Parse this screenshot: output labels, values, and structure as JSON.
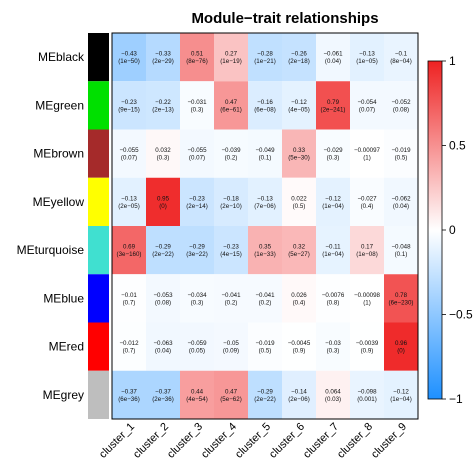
{
  "chart_data": {
    "type": "heatmap",
    "title": "Module−trait relationships",
    "rows": [
      "MEblack",
      "MEgreen",
      "MEbrown",
      "MEyellow",
      "MEturquoise",
      "MEblue",
      "MEred",
      "MEgrey"
    ],
    "row_colors": [
      "#000000",
      "#00e000",
      "#a52a2a",
      "#ffff00",
      "#40e0d0",
      "#0000ff",
      "#ff0000",
      "#bebebe"
    ],
    "columns": [
      "cluster_1",
      "cluster_2",
      "cluster_3",
      "cluster_4",
      "cluster_5",
      "cluster_6",
      "cluster_7",
      "cluster_8",
      "cluster_9"
    ],
    "values": [
      [
        -0.43,
        -0.33,
        0.51,
        0.27,
        -0.28,
        -0.26,
        -0.061,
        -0.13,
        -0.1
      ],
      [
        -0.23,
        -0.22,
        -0.031,
        0.47,
        -0.16,
        -0.12,
        0.79,
        -0.054,
        -0.052
      ],
      [
        -0.055,
        0.032,
        -0.055,
        -0.039,
        -0.049,
        0.33,
        -0.029,
        -0.00097,
        -0.019
      ],
      [
        -0.13,
        0.95,
        -0.23,
        -0.18,
        -0.13,
        0.022,
        -0.12,
        -0.027,
        -0.062
      ],
      [
        0.69,
        -0.29,
        -0.29,
        -0.23,
        0.35,
        0.32,
        -0.11,
        0.17,
        -0.048
      ],
      [
        -0.01,
        -0.053,
        -0.034,
        -0.041,
        -0.041,
        0.026,
        -0.0076,
        -0.00098,
        0.78
      ],
      [
        -0.012,
        -0.063,
        -0.059,
        -0.05,
        -0.019,
        -0.0045,
        -0.03,
        -0.0039,
        0.96
      ],
      [
        -0.37,
        -0.37,
        0.44,
        0.47,
        -0.29,
        -0.14,
        0.064,
        -0.098,
        -0.12
      ]
    ],
    "pvalues": [
      [
        "(1e−50)",
        "(2e−29)",
        "(8e−76)",
        "(1e−19)",
        "(1e−21)",
        "(2e−18)",
        "(0.04)",
        "(1e−05)",
        "(8e−04)"
      ],
      [
        "(9e−15)",
        "(2e−13)",
        "(0.3)",
        "(6e−61)",
        "(6e−08)",
        "(4e−05)",
        "(2e−241)",
        "(0.07)",
        "(0.08)"
      ],
      [
        "(0.07)",
        "(0.3)",
        "(0.07)",
        "(0.2)",
        "(0.1)",
        "(5e−30)",
        "(0.3)",
        "(1)",
        "(0.5)"
      ],
      [
        "(2e−05)",
        "(0)",
        "(2e−14)",
        "(2e−10)",
        "(7e−06)",
        "(0.5)",
        "(1e−04)",
        "(0.4)",
        "(0.04)"
      ],
      [
        "(3e−160)",
        "(2e−22)",
        "(3e−22)",
        "(4e−15)",
        "(1e−33)",
        "(5e−27)",
        "(1e−04)",
        "(1e−08)",
        "(0.1)"
      ],
      [
        "(0.7)",
        "(0.08)",
        "(0.3)",
        "(0.2)",
        "(0.2)",
        "(0.4)",
        "(0.8)",
        "(1)",
        "(6e−230)"
      ],
      [
        "(0.7)",
        "(0.04)",
        "(0.05)",
        "(0.09)",
        "(0.5)",
        "(0.9)",
        "(0.3)",
        "(0.9)",
        "(0)"
      ],
      [
        "(6e−36)",
        "(2e−36)",
        "(4e−54)",
        "(5e−62)",
        "(2e−22)",
        "(2e−06)",
        "(0.03)",
        "(0.001)",
        "(1e−04)"
      ]
    ],
    "value_labels": [
      [
        "−0.43",
        "−0.33",
        "0.51",
        "0.27",
        "−0.28",
        "−0.26",
        "−0.061",
        "−0.13",
        "−0.1"
      ],
      [
        "−0.23",
        "−0.22",
        "−0.031",
        "0.47",
        "−0.16",
        "−0.12",
        "0.79",
        "−0.054",
        "−0.052"
      ],
      [
        "−0.055",
        "0.032",
        "−0.055",
        "−0.039",
        "−0.049",
        "0.33",
        "−0.029",
        "−0.00097",
        "−0.019"
      ],
      [
        "−0.13",
        "0.95",
        "−0.23",
        "−0.18",
        "−0.13",
        "0.022",
        "−0.12",
        "−0.027",
        "−0.062"
      ],
      [
        "0.69",
        "−0.29",
        "−0.29",
        "−0.23",
        "0.35",
        "0.32",
        "−0.11",
        "0.17",
        "−0.048"
      ],
      [
        "−0.01",
        "−0.053",
        "−0.034",
        "−0.041",
        "−0.041",
        "0.026",
        "−0.0076",
        "−0.00098",
        "0.78"
      ],
      [
        "−0.012",
        "−0.063",
        "−0.059",
        "−0.05",
        "−0.019",
        "−0.0045",
        "−0.03",
        "−0.0039",
        "0.96"
      ],
      [
        "−0.37",
        "−0.37",
        "0.44",
        "0.47",
        "−0.29",
        "−0.14",
        "0.064",
        "−0.098",
        "−0.12"
      ]
    ],
    "color_scale": {
      "min": -1,
      "max": 1,
      "low_color": "#1e90ff",
      "mid_color": "#ffffff",
      "high_color": "#ee2222",
      "ticks": [
        1,
        0.5,
        0,
        -0.5,
        -1
      ],
      "tick_labels": [
        "1",
        "0.5",
        "0",
        "−0.5",
        "−1"
      ]
    },
    "legend_placement": "right"
  }
}
